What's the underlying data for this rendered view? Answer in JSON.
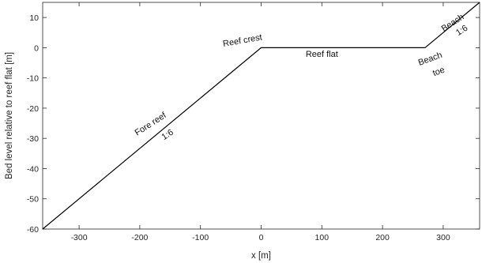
{
  "chart_data": {
    "type": "line",
    "title": "",
    "xlabel": "x [m]",
    "ylabel": "Bed level relative to reef flat [m]",
    "xlim": [
      -360,
      360
    ],
    "ylim": [
      -60,
      15
    ],
    "xticks": [
      -300,
      -200,
      -100,
      0,
      100,
      200,
      300
    ],
    "yticks": [
      -60,
      -50,
      -40,
      -30,
      -20,
      -10,
      0,
      10
    ],
    "grid": false,
    "line_color": "#000000",
    "series": [
      {
        "x": [
          -360,
          0,
          270,
          360
        ],
        "y": [
          -60,
          0,
          0,
          15
        ]
      }
    ],
    "annotations": [
      {
        "text": "Reef crest",
        "x": -30,
        "y": 1.5,
        "angle": -10
      },
      {
        "text": "Reef flat",
        "x": 100,
        "y": -3
      },
      {
        "text": "Fore reef",
        "x": -180,
        "y": -26,
        "angle": -33
      },
      {
        "text": "1:6",
        "x": -152,
        "y": -29.5,
        "angle": -33
      },
      {
        "text": "Beach",
        "x": 318,
        "y": 7.5,
        "angle": -33
      },
      {
        "text": "1:6",
        "x": 333,
        "y": 5,
        "angle": -33
      },
      {
        "text": "Beach",
        "x": 280,
        "y": -4.5,
        "angle": -20
      },
      {
        "text": "toe",
        "x": 294,
        "y": -8.7,
        "angle": -20
      }
    ]
  }
}
